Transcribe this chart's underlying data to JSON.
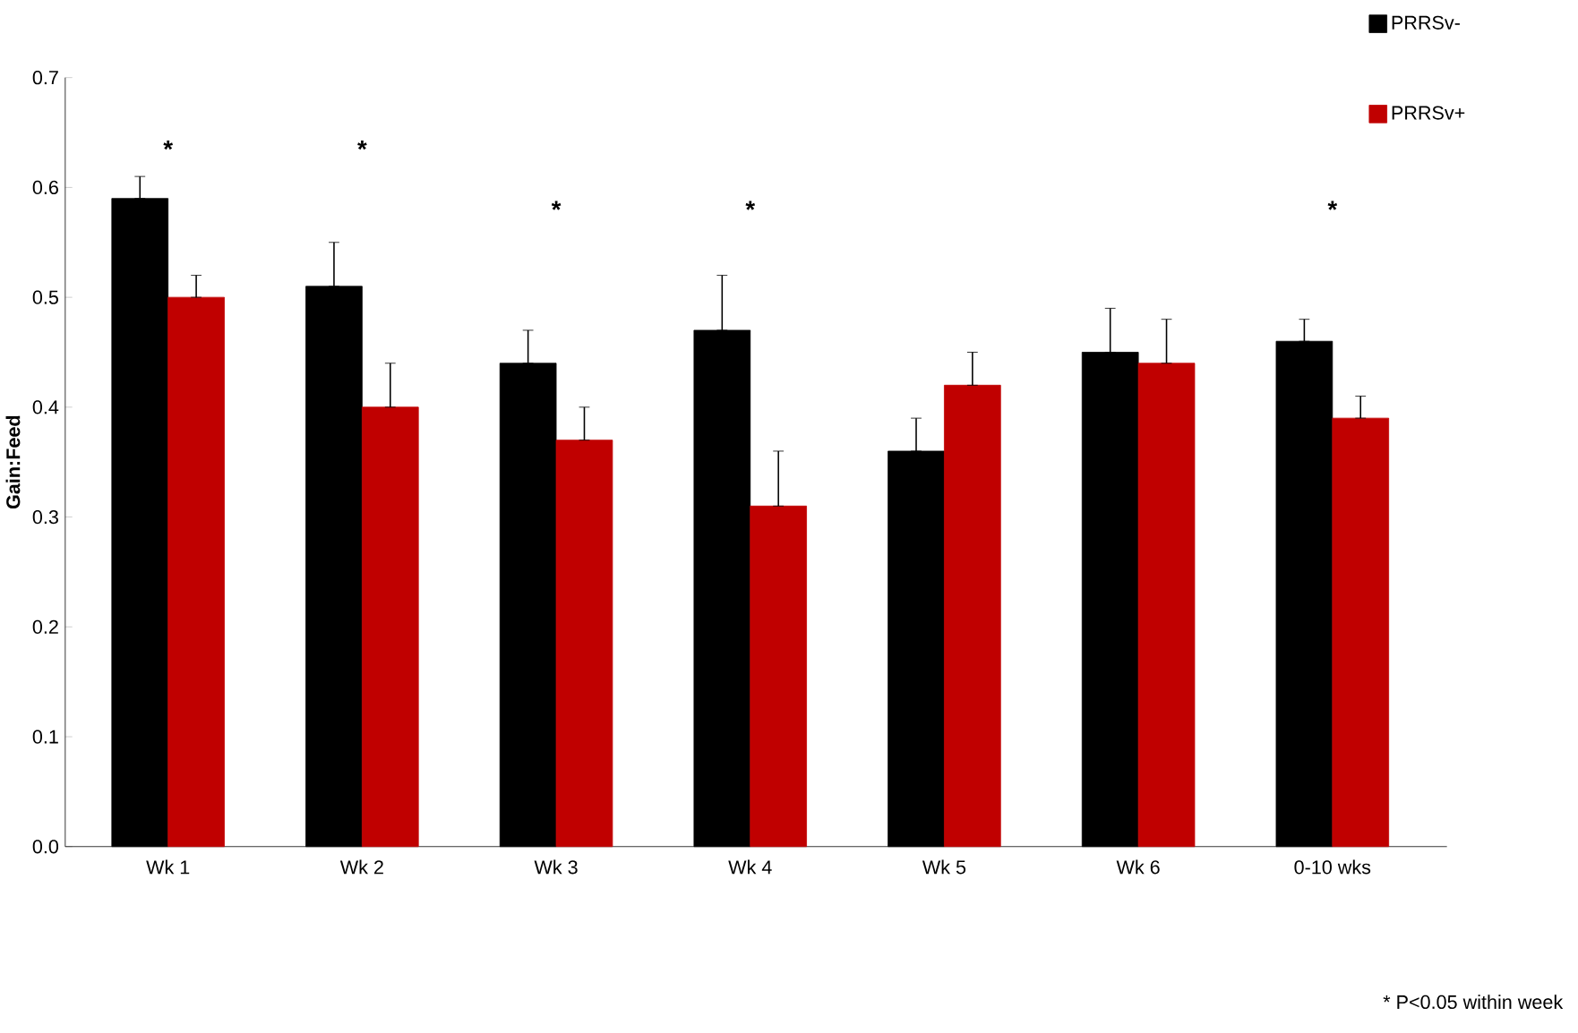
{
  "chart_data": {
    "type": "bar",
    "ylabel": "Gain:Feed",
    "categories": [
      "Wk 1",
      "Wk 2",
      "Wk 3",
      "Wk 4",
      "Wk 5",
      "Wk 6",
      "0-10 wks"
    ],
    "series": [
      {
        "name": "PRRSv-",
        "color": "#000000",
        "values": [
          0.59,
          0.51,
          0.44,
          0.47,
          0.36,
          0.45,
          0.46
        ],
        "errors": [
          [
            0.59,
            0.61
          ],
          [
            0.51,
            0.55
          ],
          [
            0.44,
            0.47
          ],
          [
            0.47,
            0.52
          ],
          [
            0.36,
            0.39
          ],
          [
            0.45,
            0.49
          ],
          [
            0.46,
            0.48
          ]
        ]
      },
      {
        "name": "PRRSv+",
        "color": "#c00000",
        "values": [
          0.5,
          0.4,
          0.37,
          0.31,
          0.42,
          0.44,
          0.39
        ],
        "errors": [
          [
            0.5,
            0.52
          ],
          [
            0.4,
            0.44
          ],
          [
            0.37,
            0.4
          ],
          [
            0.31,
            0.36
          ],
          [
            0.42,
            0.45
          ],
          [
            0.44,
            0.48
          ],
          [
            0.39,
            0.41
          ]
        ]
      }
    ],
    "ylim": [
      0,
      0.7
    ],
    "yticks": [
      {
        "value": 0,
        "label": "0.0"
      },
      {
        "value": 0.1,
        "label": "0.1"
      },
      {
        "value": 0.2,
        "label": "0.2"
      },
      {
        "value": 0.3,
        "label": "0.3"
      },
      {
        "value": 0.4,
        "label": "0.4"
      },
      {
        "value": 0.5,
        "label": "0.5"
      },
      {
        "value": 0.6,
        "label": "0.6"
      },
      {
        "value": 0.7,
        "label": "0.7"
      }
    ],
    "grid": false,
    "legend": "top right",
    "annotations": [
      "*",
      "*",
      "*",
      "*",
      "*",
      "* P<0.05 within week"
    ]
  }
}
